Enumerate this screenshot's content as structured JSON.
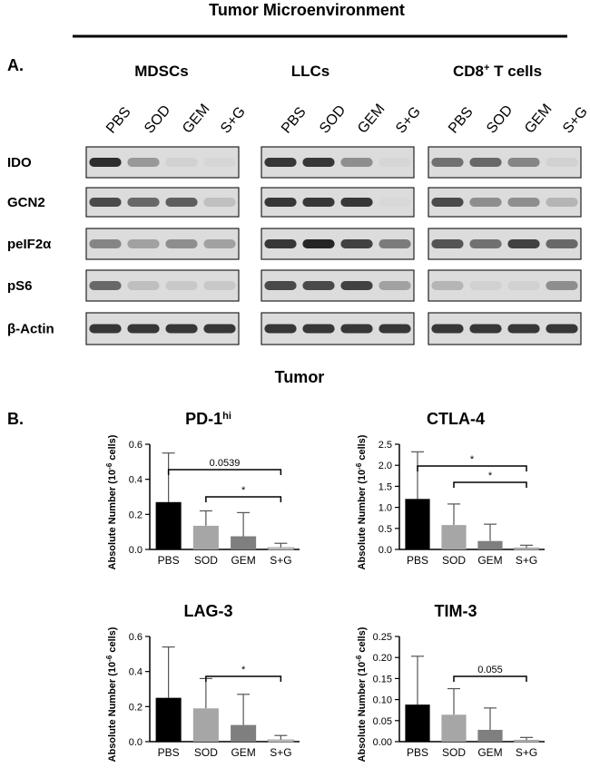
{
  "figure": {
    "title": "Tumor Microenvironment",
    "panel_a": "A.",
    "groups": [
      [
        "MDSCs"
      ],
      [
        "LLCs"
      ],
      [
        "CD8",
        "+",
        " T cells"
      ]
    ],
    "lanes": [
      [
        "PBS",
        "SOD",
        "GEM",
        "S+G"
      ],
      [
        "PBS",
        "SOD",
        "GEM",
        "S+G"
      ],
      [
        "PBS",
        "SOD",
        "GEM",
        "S+G"
      ]
    ],
    "rows": [
      "IDO",
      "GCN2",
      "peIF2α",
      "pS6",
      "β-Actin"
    ],
    "section_b": "Tumor",
    "panel_b": "B."
  },
  "chart_data": [
    {
      "type": "bar",
      "title": [
        "PD-1",
        "hi"
      ],
      "y_label": [
        "Absolute Number (10",
        "-6",
        " cells)"
      ],
      "categories": [
        "PBS",
        "SOD",
        "GEM",
        "S+G"
      ],
      "values": [
        0.27,
        0.135,
        0.075,
        0.01
      ],
      "errors": [
        0.28,
        0.085,
        0.135,
        0.025
      ],
      "colors": [
        "#000000",
        "#a6a6a6",
        "#7f7f7f",
        "#e3e3e3"
      ],
      "ylim": [
        0,
        0.6
      ],
      "yticks": [
        {
          "value": 0,
          "label": "0.0"
        },
        0.2,
        0.4,
        0.6
      ],
      "annotations": [
        "0.0539",
        "*"
      ]
    },
    {
      "type": "bar",
      "title": "CTLA-4",
      "y_label": [
        "Absolute Number (10",
        "-6",
        " cells)"
      ],
      "categories": [
        "PBS",
        "SOD",
        "GEM",
        "S+G"
      ],
      "values": [
        1.2,
        0.58,
        0.2,
        0.03
      ],
      "errors": [
        1.12,
        0.5,
        0.4,
        0.07
      ],
      "colors": [
        "#000000",
        "#a6a6a6",
        "#7f7f7f",
        "#e3e3e3"
      ],
      "ylim": [
        0,
        2.5
      ],
      "yticks": [
        {
          "value": 0,
          "label": "0.0"
        },
        0.5,
        {
          "value": 1,
          "label": "1.0"
        },
        1.5,
        {
          "value": 2,
          "label": "2.0"
        },
        2.5
      ],
      "annotations": [
        "*",
        "*"
      ]
    },
    {
      "type": "bar",
      "title": "LAG-3",
      "y_label": [
        "Absolute Number (10",
        "-6",
        " cells)"
      ],
      "categories": [
        "PBS",
        "SOD",
        "GEM",
        "S+G"
      ],
      "values": [
        0.25,
        0.19,
        0.095,
        0.01
      ],
      "errors": [
        0.29,
        0.17,
        0.175,
        0.025
      ],
      "colors": [
        "#000000",
        "#a6a6a6",
        "#7f7f7f",
        "#e3e3e3"
      ],
      "ylim": [
        0,
        0.6
      ],
      "yticks": [
        {
          "value": 0,
          "label": "0.0"
        },
        0.2,
        0.4,
        0.6
      ],
      "annotations": [
        "*"
      ]
    },
    {
      "type": "bar",
      "title": "TIM-3",
      "y_label": [
        "Absolute Number (10",
        "-6",
        " cells)"
      ],
      "categories": [
        "PBS",
        "SOD",
        "GEM",
        "S+G"
      ],
      "values": [
        0.088,
        0.064,
        0.028,
        0.003
      ],
      "errors": [
        0.115,
        0.062,
        0.052,
        0.007
      ],
      "colors": [
        "#000000",
        "#a6a6a6",
        "#7f7f7f",
        "#e3e3e3"
      ],
      "ylim": [
        0,
        0.25
      ],
      "yticks": [
        {
          "value": 0,
          "label": "0.00"
        },
        {
          "value": 0.05,
          "label": "0.05"
        },
        {
          "value": 0.1,
          "label": "0.10"
        },
        {
          "value": 0.15,
          "label": "0.15"
        },
        {
          "value": 0.2,
          "label": "0.20"
        },
        {
          "value": 0.25,
          "label": "0.25"
        }
      ],
      "annotations": [
        "0.055"
      ]
    }
  ]
}
